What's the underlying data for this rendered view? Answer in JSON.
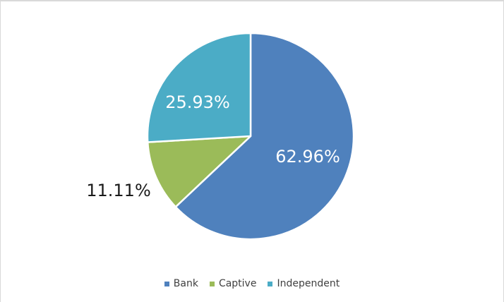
{
  "chart_data": {
    "type": "pie",
    "categories": [
      "Bank",
      "Captive",
      "Independent"
    ],
    "values": [
      62.96,
      11.11,
      25.93
    ],
    "labels": [
      "62.96%",
      "11.11%",
      "25.93%"
    ],
    "colors": [
      "#4f81bd",
      "#9bbb59",
      "#4bacc6"
    ],
    "start_angle": "12 o'clock",
    "direction": "clockwise",
    "legend_position": "bottom",
    "slice_border_color": "#ffffff"
  }
}
